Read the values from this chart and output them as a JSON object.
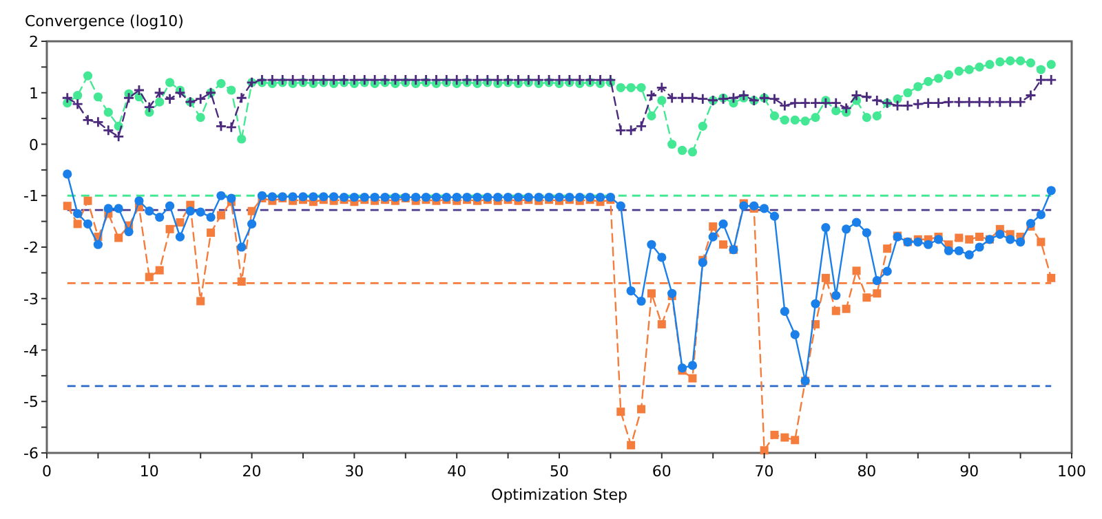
{
  "chart_data": {
    "type": "line",
    "ylabel": "Convergence (log10)",
    "xlabel": "Optimization Step",
    "x": [
      2,
      3,
      4,
      5,
      6,
      7,
      8,
      9,
      10,
      11,
      12,
      13,
      14,
      15,
      16,
      17,
      18,
      19,
      20,
      21,
      22,
      23,
      24,
      25,
      26,
      27,
      28,
      29,
      30,
      31,
      32,
      33,
      34,
      35,
      36,
      37,
      38,
      39,
      40,
      41,
      42,
      43,
      44,
      45,
      46,
      47,
      48,
      49,
      50,
      51,
      52,
      53,
      54,
      55,
      56,
      57,
      58,
      59,
      60,
      61,
      62,
      63,
      64,
      65,
      66,
      67,
      68,
      69,
      70,
      71,
      72,
      73,
      74,
      75,
      76,
      77,
      78,
      79,
      80,
      81,
      82,
      83,
      84,
      85,
      86,
      87,
      88,
      89,
      90,
      91,
      92,
      93,
      94,
      95,
      96,
      97,
      98
    ],
    "xlim": [
      0,
      100
    ],
    "xticks": [
      0,
      {
        "value": 5,
        "label": null
      },
      10,
      {
        "value": 15,
        "label": null
      },
      20,
      {
        "value": 25,
        "label": null
      },
      30,
      {
        "value": 35,
        "label": null
      },
      40,
      {
        "value": 45,
        "label": null
      },
      50,
      {
        "value": 55,
        "label": null
      },
      60,
      {
        "value": 65,
        "label": null
      },
      70,
      {
        "value": 75,
        "label": null
      },
      80,
      {
        "value": 85,
        "label": null
      },
      90,
      {
        "value": 95,
        "label": null
      },
      100
    ],
    "ylim": [
      -6,
      2
    ],
    "yticks": [
      -6,
      {
        "value": -5.5,
        "label": null
      },
      -5,
      {
        "value": -4.5,
        "label": null
      },
      -4,
      {
        "value": -3.5,
        "label": null
      },
      -3,
      {
        "value": -2.5,
        "label": null
      },
      -2,
      {
        "value": -1.5,
        "label": null
      },
      -1,
      {
        "value": -0.5,
        "label": null
      },
      0,
      {
        "value": 0.5,
        "label": null
      },
      1,
      {
        "value": 1.5,
        "label": null
      },
      2
    ],
    "grid": false,
    "series": [
      {
        "color": "#44e894",
        "marker": "circle",
        "line_style": "dashed",
        "values": [
          0.8,
          0.95,
          1.33,
          0.92,
          0.62,
          0.35,
          0.98,
          0.92,
          0.62,
          0.82,
          1.2,
          1.05,
          0.82,
          0.52,
          1.0,
          1.18,
          1.05,
          0.1,
          1.2,
          1.2,
          1.18,
          1.2,
          1.18,
          1.2,
          1.18,
          1.2,
          1.18,
          1.2,
          1.18,
          1.2,
          1.18,
          1.2,
          1.18,
          1.2,
          1.18,
          1.2,
          1.18,
          1.2,
          1.18,
          1.2,
          1.18,
          1.2,
          1.18,
          1.2,
          1.18,
          1.2,
          1.18,
          1.2,
          1.18,
          1.2,
          1.18,
          1.2,
          1.18,
          1.2,
          1.1,
          1.1,
          1.1,
          0.55,
          0.85,
          0.0,
          -0.12,
          -0.15,
          0.35,
          0.85,
          0.9,
          0.8,
          0.9,
          0.85,
          0.9,
          0.55,
          0.47,
          0.47,
          0.45,
          0.52,
          0.85,
          0.65,
          0.62,
          0.85,
          0.52,
          0.55,
          0.8,
          0.88,
          1.0,
          1.12,
          1.22,
          1.28,
          1.35,
          1.42,
          1.45,
          1.5,
          1.55,
          1.6,
          1.62,
          1.62,
          1.58,
          1.45,
          1.55
        ]
      },
      {
        "color": "#4b2a7e",
        "marker": "cross",
        "line_style": "dashed",
        "values": [
          0.9,
          0.78,
          0.47,
          0.43,
          0.27,
          0.15,
          0.9,
          1.05,
          0.72,
          1.0,
          0.88,
          1.0,
          0.82,
          0.88,
          1.0,
          0.35,
          0.33,
          0.9,
          1.2,
          1.25,
          1.25,
          1.25,
          1.25,
          1.25,
          1.25,
          1.25,
          1.25,
          1.25,
          1.25,
          1.25,
          1.25,
          1.25,
          1.25,
          1.25,
          1.25,
          1.25,
          1.25,
          1.25,
          1.25,
          1.25,
          1.25,
          1.25,
          1.25,
          1.25,
          1.25,
          1.25,
          1.25,
          1.25,
          1.25,
          1.25,
          1.25,
          1.25,
          1.25,
          1.25,
          0.27,
          0.27,
          0.35,
          0.95,
          1.1,
          0.9,
          0.9,
          0.9,
          0.88,
          0.85,
          0.88,
          0.9,
          0.95,
          0.85,
          0.9,
          0.88,
          0.75,
          0.8,
          0.8,
          0.8,
          0.8,
          0.8,
          0.7,
          0.95,
          0.92,
          0.85,
          0.8,
          0.75,
          0.75,
          0.78,
          0.8,
          0.8,
          0.82,
          0.82,
          0.82,
          0.82,
          0.82,
          0.82,
          0.82,
          0.82,
          0.95,
          1.25,
          1.25
        ]
      },
      {
        "color": "#f47c3c",
        "marker": "square",
        "line_style": "dashed",
        "values": [
          -1.2,
          -1.55,
          -1.1,
          -1.8,
          -1.35,
          -1.82,
          -1.58,
          -1.22,
          -2.58,
          -2.45,
          -1.65,
          -1.52,
          -1.18,
          -3.05,
          -1.72,
          -1.38,
          -1.12,
          -2.67,
          -1.3,
          -1.05,
          -1.1,
          -1.05,
          -1.1,
          -1.08,
          -1.12,
          -1.08,
          -1.1,
          -1.08,
          -1.12,
          -1.08,
          -1.1,
          -1.08,
          -1.1,
          -1.05,
          -1.1,
          -1.08,
          -1.1,
          -1.08,
          -1.1,
          -1.08,
          -1.1,
          -1.08,
          -1.1,
          -1.08,
          -1.1,
          -1.08,
          -1.1,
          -1.08,
          -1.1,
          -1.08,
          -1.1,
          -1.08,
          -1.12,
          -1.08,
          -5.2,
          -5.85,
          -5.15,
          -2.9,
          -3.5,
          -2.95,
          -4.4,
          -4.55,
          -2.25,
          -1.6,
          -1.95,
          -2.05,
          -1.15,
          -1.25,
          -5.95,
          -5.65,
          -5.7,
          -5.75,
          -4.6,
          -3.5,
          -2.6,
          -3.24,
          -3.2,
          -2.46,
          -2.98,
          -2.9,
          -2.03,
          -1.78,
          -1.9,
          -1.85,
          -1.85,
          -1.8,
          -1.95,
          -1.82,
          -1.85,
          -1.8,
          -1.85,
          -1.65,
          -1.75,
          -1.8,
          -1.6,
          -1.9,
          -2.6
        ]
      },
      {
        "color": "#1a7fe8",
        "marker": "circle",
        "line_style": "solid",
        "values": [
          -0.58,
          -1.35,
          -1.55,
          -1.95,
          -1.25,
          -1.25,
          -1.7,
          -1.1,
          -1.3,
          -1.42,
          -1.2,
          -1.8,
          -1.3,
          -1.32,
          -1.42,
          -1.0,
          -1.05,
          -2.0,
          -1.55,
          -1.0,
          -1.02,
          -1.02,
          -1.02,
          -1.02,
          -1.02,
          -1.02,
          -1.02,
          -1.03,
          -1.03,
          -1.03,
          -1.03,
          -1.03,
          -1.03,
          -1.03,
          -1.03,
          -1.03,
          -1.03,
          -1.03,
          -1.03,
          -1.03,
          -1.03,
          -1.03,
          -1.03,
          -1.03,
          -1.03,
          -1.03,
          -1.03,
          -1.03,
          -1.03,
          -1.03,
          -1.03,
          -1.03,
          -1.03,
          -1.03,
          -1.2,
          -2.85,
          -3.05,
          -1.95,
          -2.2,
          -2.9,
          -4.35,
          -4.3,
          -2.3,
          -1.8,
          -1.55,
          -2.05,
          -1.2,
          -1.2,
          -1.25,
          -1.4,
          -3.25,
          -3.7,
          -4.6,
          -3.1,
          -1.62,
          -2.94,
          -1.65,
          -1.52,
          -1.72,
          -2.65,
          -2.47,
          -1.8,
          -1.9,
          -1.9,
          -1.95,
          -1.85,
          -2.07,
          -2.07,
          -2.15,
          -2.0,
          -1.85,
          -1.75,
          -1.85,
          -1.9,
          -1.54,
          -1.37,
          -0.9
        ]
      }
    ],
    "ref_lines": [
      {
        "axis": "y",
        "value": -1.0,
        "color": "#44e894",
        "line_style": "dashed"
      },
      {
        "axis": "y",
        "value": -1.28,
        "color": "#4b3a8e",
        "line_style": "dashed"
      },
      {
        "axis": "y",
        "value": -2.7,
        "color": "#f47c3c",
        "line_style": "dashed"
      },
      {
        "axis": "y",
        "value": -4.7,
        "color": "#2a6acc",
        "line_style": "dashed"
      }
    ]
  }
}
